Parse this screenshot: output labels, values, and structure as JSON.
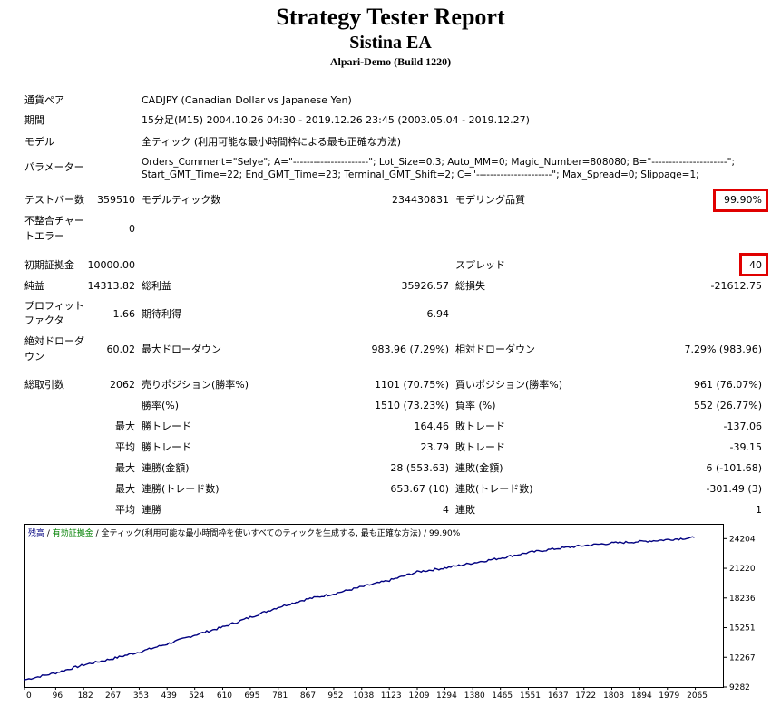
{
  "header": {
    "title": "Strategy Tester Report",
    "subtitle": "Sistina EA",
    "server": "Alpari-Demo (Build 1220)"
  },
  "info": {
    "symbol_label": "通貨ペア",
    "symbol_value": "CADJPY (Canadian Dollar vs Japanese Yen)",
    "period_label": "期間",
    "period_value": "15分足(M15) 2004.10.26 04:30 - 2019.12.26 23:45 (2003.05.04 - 2019.12.27)",
    "model_label": "モデル",
    "model_value": "全ティック (利用可能な最小時間枠による最も正確な方法)",
    "params_label": "パラメーター",
    "params_line1": "Orders_Comment=\"Selye\"; A=\"----------------------\"; Lot_Size=0.3; Auto_MM=0; Magic_Number=808080; B=\"----------------------\";",
    "params_line2": "Start_GMT_Time=22; End_GMT_Time=23; Terminal_GMT_Shift=2; C=\"----------------------\"; Max_Spread=0; Slippage=1;"
  },
  "stats": {
    "bars_label": "テストバー数",
    "bars_value": "359510",
    "ticks_label": "モデルティック数",
    "ticks_value": "234430831",
    "quality_label": "モデリング品質",
    "quality_value": "99.90%",
    "mismatch_label_1": "不整合チャー",
    "mismatch_label_2": "トエラー",
    "mismatch_value": "0",
    "deposit_label": "初期証拠金",
    "deposit_value": "10000.00",
    "spread_label": "スプレッド",
    "spread_value": "40",
    "net_label": "純益",
    "net_value": "14313.82",
    "gross_profit_label": "総利益",
    "gross_profit_value": "35926.57",
    "gross_loss_label": "総損失",
    "gross_loss_value": "-21612.75",
    "pf_label_1": "プロフィット",
    "pf_label_2": "ファクタ",
    "pf_value": "1.66",
    "payoff_label": "期待利得",
    "payoff_value": "6.94",
    "abs_dd_label_1": "絶対ドローダ",
    "abs_dd_label_2": "ウン",
    "abs_dd_value": "60.02",
    "max_dd_label": "最大ドローダウン",
    "max_dd_value": "983.96 (7.29%)",
    "rel_dd_label": "相対ドローダウン",
    "rel_dd_value": "7.29% (983.96)",
    "trades_label": "総取引数",
    "trades_value": "2062",
    "short_label": "売りポジション(勝率%)",
    "short_value": "1101 (70.75%)",
    "long_label": "買いポジション(勝率%)",
    "long_value": "961 (76.07%)",
    "win_label": "勝率(%)",
    "win_value": "1510 (73.23%)",
    "loss_label": "負率 (%)",
    "loss_value": "552 (26.77%)",
    "largest": "最大",
    "average": "平均",
    "maximum": "最大",
    "lp_label": "勝トレード",
    "lp_value": "164.46",
    "ll_label": "敗トレード",
    "ll_value": "-137.06",
    "ap_label": "勝トレード",
    "ap_value": "23.79",
    "al_label": "敗トレード",
    "al_value": "-39.15",
    "mcw_label": "連勝(金額)",
    "mcw_value": "28 (553.63)",
    "mcl_label": "連敗(金額)",
    "mcl_value": "6 (-101.68)",
    "mcp_label": "連勝(トレード数)",
    "mcp_value": "653.67 (10)",
    "mcloss_label": "連敗(トレード数)",
    "mcloss_value": "-301.49 (3)",
    "acw_label": "連勝",
    "acw_value": "4",
    "acl_label": "連敗",
    "acl_value": "1"
  },
  "chart_data": {
    "type": "line",
    "legend_balance": "残高",
    "legend_equity": "有効証拠金",
    "legend_rest": " / 全ティック(利用可能な最小時間枠を使いすべてのティックを生成する, 最も正確な方法) / 99.90%",
    "x_ticks": [
      "0",
      "96",
      "182",
      "267",
      "353",
      "439",
      "524",
      "610",
      "695",
      "781",
      "867",
      "952",
      "1038",
      "1123",
      "1209",
      "1294",
      "1380",
      "1465",
      "1551",
      "1637",
      "1722",
      "1808",
      "1894",
      "1979",
      "2065"
    ],
    "y_ticks": [
      "24204",
      "21220",
      "18236",
      "15251",
      "12267",
      "9282"
    ],
    "xlim": [
      0,
      2150
    ],
    "ylim": [
      9282,
      25692
    ],
    "line_color": "#000080",
    "series": [
      {
        "x": [
          0,
          96,
          182,
          267,
          353,
          439,
          524,
          610,
          695,
          781,
          867,
          952,
          1038,
          1123,
          1209,
          1294,
          1380,
          1465,
          1551,
          1637,
          1722,
          1808,
          1894,
          1979,
          2062
        ],
        "values": [
          10000,
          10700,
          11500,
          12100,
          12800,
          13600,
          14500,
          15300,
          16300,
          17300,
          18100,
          18650,
          19350,
          20000,
          20850,
          21250,
          21750,
          22250,
          22800,
          23200,
          23500,
          23750,
          23900,
          24100,
          24314
        ]
      }
    ]
  }
}
